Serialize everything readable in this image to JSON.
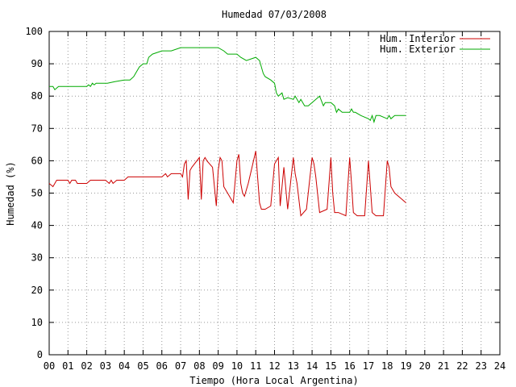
{
  "chart_data": {
    "type": "line",
    "title": "Humedad 07/03/2008",
    "xlabel": "Tiempo (Hora Local Argentina)",
    "ylabel": "Humedad (%)",
    "xlim": [
      0,
      24
    ],
    "ylim": [
      0,
      100
    ],
    "grid": true,
    "legend_position": "top-right",
    "x_ticks": [
      "00",
      "01",
      "02",
      "03",
      "04",
      "05",
      "06",
      "07",
      "08",
      "09",
      "10",
      "11",
      "12",
      "13",
      "14",
      "15",
      "16",
      "17",
      "18",
      "19",
      "20",
      "21",
      "22",
      "23",
      "24"
    ],
    "y_ticks": [
      "0",
      "10",
      "20",
      "30",
      "40",
      "50",
      "60",
      "70",
      "80",
      "90",
      "100"
    ],
    "series": [
      {
        "name": "Hum. Interior",
        "color": "#cc0000",
        "x": [
          0,
          0.2,
          0.3,
          0.4,
          1.0,
          1.1,
          1.2,
          1.4,
          1.5,
          2.0,
          2.2,
          2.3,
          3.0,
          3.2,
          3.3,
          3.4,
          3.6,
          4.0,
          4.2,
          5.0,
          5.5,
          6.0,
          6.2,
          6.3,
          6.5,
          7.0,
          7.1,
          7.2,
          7.3,
          7.4,
          7.5,
          7.6,
          8.0,
          8.1,
          8.2,
          8.3,
          8.4,
          8.7,
          8.9,
          9.0,
          9.1,
          9.2,
          9.3,
          9.4,
          9.5,
          9.8,
          10.0,
          10.1,
          10.2,
          10.3,
          10.4,
          10.6,
          10.8,
          11.0,
          11.1,
          11.2,
          11.3,
          11.5,
          11.8,
          12.0,
          12.2,
          12.3,
          12.5,
          12.7,
          13.0,
          13.1,
          13.2,
          13.4,
          13.7,
          14.0,
          14.1,
          14.2,
          14.4,
          14.8,
          15.0,
          15.1,
          15.2,
          15.4,
          15.8,
          16.0,
          16.1,
          16.2,
          16.4,
          16.8,
          17.0,
          17.1,
          17.2,
          17.4,
          17.8,
          18.0,
          18.1,
          18.2,
          18.4,
          18.8,
          19.0
        ],
        "y": [
          53,
          52,
          53,
          54,
          54,
          53,
          54,
          54,
          53,
          53,
          54,
          54,
          54,
          53,
          54,
          53,
          54,
          54,
          55,
          55,
          55,
          55,
          56,
          55,
          56,
          56,
          55,
          59,
          60,
          48,
          57,
          58,
          61,
          48,
          60,
          61,
          60,
          58,
          46,
          57,
          61,
          60,
          52,
          51,
          50,
          47,
          60,
          62,
          53,
          50,
          49,
          53,
          58,
          63,
          55,
          47,
          45,
          45,
          46,
          59,
          61,
          46,
          58,
          45,
          61,
          56,
          53,
          43,
          45,
          61,
          59,
          55,
          44,
          45,
          61,
          50,
          44,
          44,
          43,
          61,
          53,
          44,
          43,
          43,
          60,
          52,
          44,
          43,
          43,
          60,
          58,
          52,
          50,
          48,
          47
        ]
      },
      {
        "name": "Hum. Exterior",
        "color": "#00aa00",
        "x": [
          0,
          0.2,
          0.3,
          0.5,
          1.0,
          2.0,
          2.1,
          2.2,
          2.3,
          2.4,
          2.5,
          3.0,
          3.1,
          3.5,
          4.0,
          4.1,
          4.3,
          4.5,
          4.6,
          4.8,
          5.0,
          5.2,
          5.3,
          5.5,
          6.0,
          6.5,
          7.0,
          7.5,
          8.0,
          9.0,
          9.3,
          9.5,
          10.0,
          10.2,
          10.5,
          11.0,
          11.2,
          11.4,
          11.5,
          11.8,
          12.0,
          12.1,
          12.2,
          12.4,
          12.5,
          12.7,
          13.0,
          13.1,
          13.3,
          13.4,
          13.6,
          13.8,
          14.0,
          14.2,
          14.4,
          14.6,
          14.7,
          15.0,
          15.2,
          15.3,
          15.4,
          15.6,
          16.0,
          16.1,
          16.2,
          16.3,
          16.6,
          17.0,
          17.1,
          17.2,
          17.3,
          17.4,
          17.6,
          18.0,
          18.1,
          18.2,
          18.4,
          18.6,
          19.0
        ],
        "y": [
          83,
          83,
          82,
          83,
          83,
          83,
          83.5,
          83,
          84,
          83.5,
          84,
          84,
          84,
          84.5,
          85,
          85,
          85,
          86,
          87,
          89,
          90,
          90,
          92,
          93,
          94,
          94,
          95,
          95,
          95,
          95,
          94,
          93,
          93,
          92,
          91,
          92,
          91,
          87,
          86,
          85,
          84,
          81,
          80,
          81,
          79,
          79.5,
          79,
          80,
          78,
          79,
          77,
          77,
          78,
          79,
          80,
          77,
          78,
          78,
          77,
          75,
          76,
          75,
          75,
          76,
          75,
          75,
          74,
          73,
          72.5,
          74,
          72,
          74,
          74,
          73,
          74,
          73,
          74,
          74,
          74
        ]
      }
    ]
  }
}
